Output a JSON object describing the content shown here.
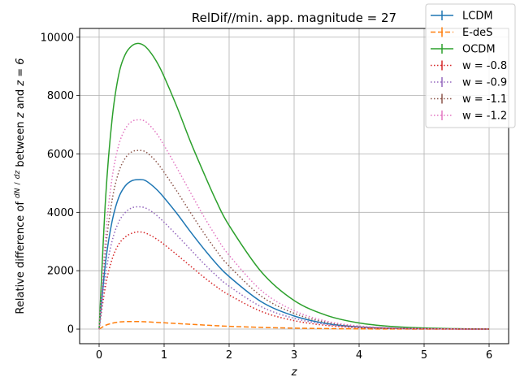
{
  "chart_data": {
    "type": "line",
    "title": "RelDif//min. app. magnitude = 27",
    "xlabel": "z",
    "ylabel_prefix": "Relative difference of ",
    "ylabel_frac_num": "dN",
    "ylabel_frac_den": "dz",
    "ylabel_mid": " between ",
    "ylabel_z": "z",
    "ylabel_and": " and ",
    "ylabel_eq": "z = 6",
    "xlim": [
      -0.3,
      6.3
    ],
    "ylim": [
      -500,
      10300
    ],
    "xticks": [
      0,
      1,
      2,
      3,
      4,
      5,
      6
    ],
    "xtick_labels": [
      "0",
      "1",
      "2",
      "3",
      "4",
      "5",
      "6"
    ],
    "yticks": [
      0,
      2000,
      4000,
      6000,
      8000,
      10000
    ],
    "ytick_labels": [
      "0",
      "2000",
      "4000",
      "6000",
      "8000",
      "10000"
    ],
    "grid": true,
    "legend_position": "top-right",
    "x": [
      0,
      0.1,
      0.2,
      0.3,
      0.4,
      0.5,
      0.6,
      0.7,
      0.8,
      0.9,
      1.0,
      1.2,
      1.4,
      1.6,
      1.8,
      2.0,
      2.5,
      3.0,
      3.5,
      4.0,
      4.5,
      5.0,
      5.5,
      6.0
    ],
    "series": [
      {
        "name": "LCDM",
        "color": "#1f77b4",
        "style": "solid",
        "values": [
          0,
          2300,
          3700,
          4500,
          4900,
          5080,
          5120,
          5100,
          4950,
          4750,
          4500,
          3950,
          3350,
          2780,
          2250,
          1800,
          930,
          450,
          190,
          75,
          30,
          12,
          4,
          0
        ]
      },
      {
        "name": "E-deS",
        "color": "#ff7f0e",
        "style": "dashed",
        "values": [
          0,
          130,
          200,
          240,
          255,
          260,
          258,
          250,
          240,
          228,
          215,
          190,
          165,
          140,
          117,
          95,
          58,
          32,
          17,
          8,
          4,
          2,
          1,
          0
        ]
      },
      {
        "name": "OCDM",
        "color": "#2ca02c",
        "style": "solid",
        "values": [
          0,
          4500,
          7200,
          8700,
          9400,
          9700,
          9790,
          9700,
          9450,
          9100,
          8650,
          7600,
          6450,
          5400,
          4400,
          3550,
          1950,
          980,
          470,
          210,
          90,
          38,
          14,
          0
        ]
      },
      {
        "name": "w = -0.8",
        "color": "#d62728",
        "style": "dotted",
        "values": [
          0,
          1500,
          2400,
          2900,
          3150,
          3280,
          3330,
          3300,
          3200,
          3060,
          2900,
          2540,
          2170,
          1800,
          1460,
          1170,
          600,
          290,
          125,
          50,
          20,
          8,
          3,
          0
        ]
      },
      {
        "name": "w = -0.9",
        "color": "#9467bd",
        "style": "dotted",
        "values": [
          0,
          1880,
          3020,
          3660,
          3990,
          4150,
          4190,
          4160,
          4040,
          3870,
          3660,
          3210,
          2740,
          2270,
          1840,
          1470,
          760,
          370,
          160,
          65,
          26,
          10,
          4,
          0
        ]
      },
      {
        "name": "w = -1.1",
        "color": "#8c564b",
        "style": "dotted",
        "values": [
          0,
          2750,
          4420,
          5370,
          5850,
          6070,
          6120,
          6090,
          5920,
          5680,
          5370,
          4710,
          4010,
          3330,
          2700,
          2160,
          1120,
          540,
          230,
          90,
          36,
          14,
          5,
          0
        ]
      },
      {
        "name": "w = -1.2",
        "color": "#e377c2",
        "style": "dotted",
        "values": [
          0,
          3220,
          5180,
          6290,
          6850,
          7110,
          7170,
          7130,
          6930,
          6650,
          6290,
          5510,
          4700,
          3900,
          3170,
          2530,
          1310,
          630,
          270,
          106,
          42,
          16,
          6,
          0
        ]
      }
    ]
  }
}
